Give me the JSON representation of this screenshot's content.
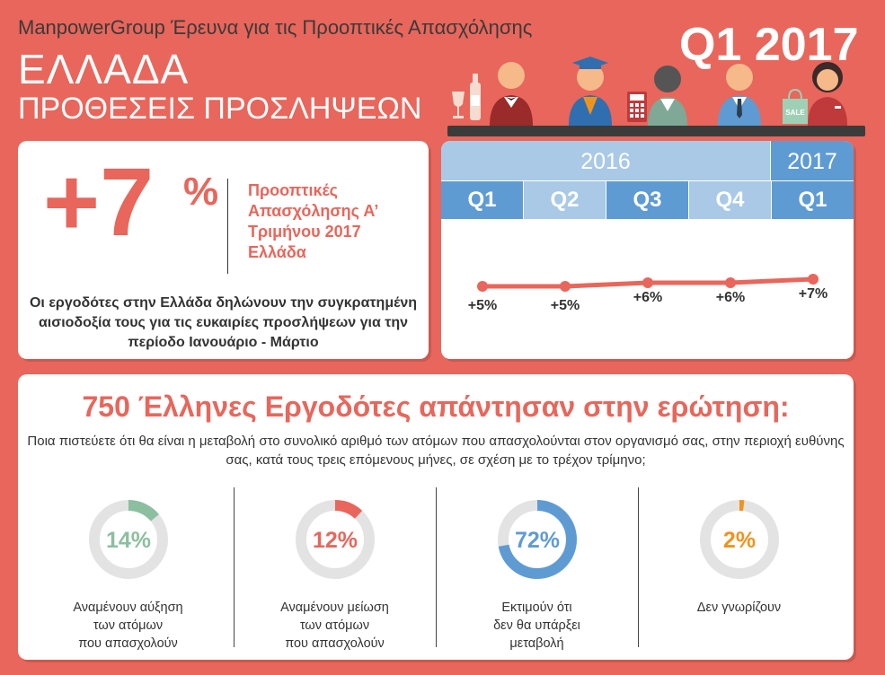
{
  "header": {
    "subtitle": "ManpowerGroup Έρευνα για τις Προοπτικές Απασχόλησης",
    "title": "ΕΛΛΑΔΑ",
    "sub_title": "ΠΡΟΘΕΣΕΙΣ ΠΡΟΣΛΗΨΕΩΝ",
    "badge": "Q1 2017",
    "sale_tag": "SALE"
  },
  "outlook": {
    "value": "+7",
    "percent": "%",
    "label": "Προοπτικές Απασχόλησης Α’ Τριμήνου 2017 Ελλάδα",
    "summary": "Οι εργοδότες στην Ελλάδα δηλώνουν την συγκρατημένη αισιοδοξία τους για τις ευκαιρίες προσλήψεων για την περίοδο Ιανουάριο - Μάρτιο"
  },
  "timeline": {
    "year_2016": "2016",
    "year_2017": "2017",
    "quarters": [
      "Q1",
      "Q2",
      "Q3",
      "Q4",
      "Q1"
    ]
  },
  "survey": {
    "title": "750 Έλληνες Εργοδότες απάντησαν στην ερώτηση:",
    "question": "Ποια πιστεύετε ότι θα είναι η μεταβολή στο συνολικό αριθμό των ατόμων που απασχολούνται στον οργανισμό σας, στην περιοχή ευθύνης σας, κατά τους τρεις επόμενους μήνες, σε σχέση με το τρέχον τρίμηνο;"
  },
  "colors": {
    "background": "#e8665b",
    "increase": "#8cbf9f",
    "decrease": "#e8665b",
    "no_change": "#5f9bd3",
    "dont_know": "#f0931e",
    "track": "#e3e3e3",
    "year_2016": "#a9c9e6",
    "year_2017": "#5f9bd3"
  },
  "chart_data": [
    {
      "type": "line",
      "categories": [
        "Q1 2016",
        "Q2 2016",
        "Q3 2016",
        "Q4 2016",
        "Q1 2017"
      ],
      "values": [
        5,
        5,
        6,
        6,
        7
      ],
      "data_labels": [
        "+5%",
        "+5%",
        "+6%",
        "+6%",
        "+7%"
      ],
      "title": "",
      "xlabel": "",
      "ylabel": ""
    },
    {
      "type": "pie",
      "categories": [
        "Αναμένουν αύξηση των ατόμων που απασχολούν",
        "Αναμένουν μείωση των ατόμων που απασχολούν",
        "Εκτιμούν ότι δεν θα υπάρξει μεταβολή",
        "Δεν γνωρίζουν"
      ],
      "values": [
        14,
        12,
        72,
        2
      ],
      "data_labels": [
        "14%",
        "12%",
        "72%",
        "2%"
      ],
      "style": "donut"
    }
  ],
  "donut_labels": [
    "Αναμένουν αύξηση\nτων ατόμων\nπου απασχολούν",
    "Αναμένουν μείωση\nτων ατόμων\nπου απασχολούν",
    "Εκτιμούν ότι\nδεν θα υπάρξει\nμεταβολή",
    "Δεν γνωρίζουν"
  ]
}
